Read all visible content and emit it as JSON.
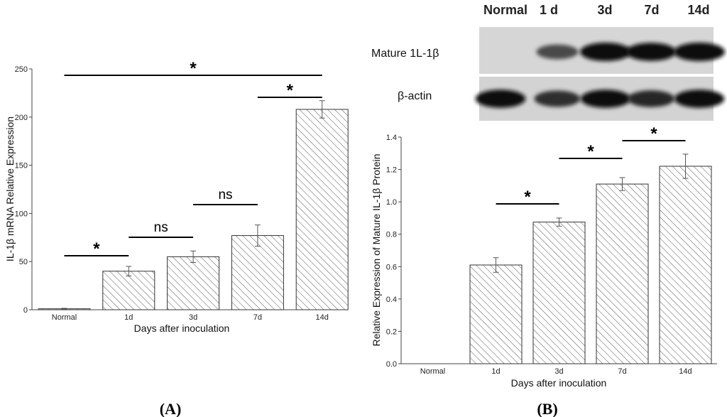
{
  "chart_data": [
    {
      "id": "A",
      "type": "bar",
      "panel_label": "A",
      "categories": [
        "Normal",
        "1d",
        "3d",
        "7d",
        "14d"
      ],
      "values": [
        1,
        40,
        55,
        77,
        208
      ],
      "errors": [
        0.5,
        5,
        6,
        11,
        9
      ],
      "ylabel": "IL-1β  mRNA Relative Expression",
      "xlabel": "Days after inoculation",
      "ylim": [
        0,
        250
      ],
      "yticks": [
        0,
        50,
        100,
        150,
        200,
        250
      ],
      "comparisons": [
        {
          "from": 0,
          "to": 1,
          "label": "*"
        },
        {
          "from": 1,
          "to": 2,
          "label": "ns"
        },
        {
          "from": 2,
          "to": 3,
          "label": "ns"
        },
        {
          "from": 3,
          "to": 4,
          "label": "*"
        },
        {
          "from": 0,
          "to": 4,
          "label": "*"
        }
      ]
    },
    {
      "id": "B",
      "type": "bar",
      "panel_label": "B",
      "categories": [
        "Normal",
        "1d",
        "3d",
        "7d",
        "14d"
      ],
      "values": [
        0,
        0.61,
        0.875,
        1.11,
        1.22
      ],
      "errors": [
        0,
        0.045,
        0.025,
        0.04,
        0.075
      ],
      "ylabel": "Relative Expression of Mature IL-1β  Protein",
      "xlabel": "Days after inoculation",
      "ylim": [
        0,
        1.4
      ],
      "yticks": [
        "0.0",
        "0.2",
        "0.4",
        "0.6",
        "0.8",
        "1.0",
        "1.2",
        "1.4"
      ],
      "comparisons": [
        {
          "from": 1,
          "to": 2,
          "label": "*"
        },
        {
          "from": 2,
          "to": 3,
          "label": "*"
        },
        {
          "from": 3,
          "to": 4,
          "label": "*"
        }
      ]
    }
  ],
  "blot": {
    "lanes": [
      "Normal",
      "1 d",
      "3d",
      "7d",
      "14d"
    ],
    "rows": [
      {
        "label": "Mature 1L-1β",
        "intensity": [
          0.0,
          0.55,
          1.0,
          0.95,
          1.0
        ]
      },
      {
        "label": "β-actin",
        "intensity": [
          0.95,
          0.75,
          0.95,
          0.8,
          0.95
        ]
      }
    ]
  }
}
